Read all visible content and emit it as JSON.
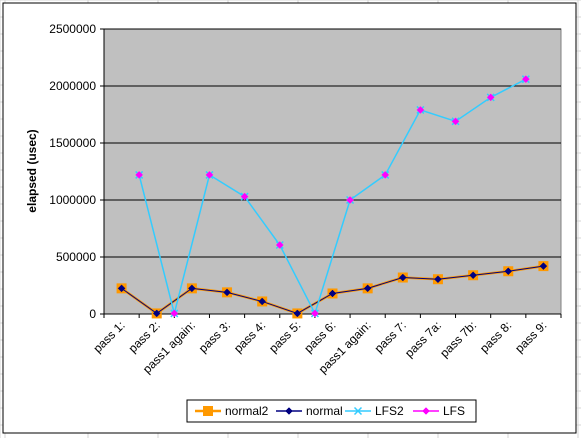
{
  "chart_data": {
    "type": "line",
    "title": "",
    "xlabel": "",
    "ylabel": "elapsed (usec)",
    "ylim": [
      0,
      2500000
    ],
    "yticks": [
      "0",
      "500000",
      "1000000",
      "1500000",
      "2000000",
      "2500000"
    ],
    "categories": [
      "pass 1:",
      "pass 2:",
      "pass1 again:",
      "pass 3:",
      "pass 4:",
      "pass 5:",
      "pass 6:",
      "pass1 again:",
      "pass 7:",
      "pass 7a:",
      "pass 7b:",
      "pass 8:",
      "pass 9:"
    ],
    "grid": "horizontal major",
    "legend": "bottom",
    "plot_background": "#c0c0c0",
    "series": [
      {
        "name": "normal2",
        "color": "#ff9900",
        "marker": "square",
        "offset": "on-tick",
        "values": [
          225000,
          5000,
          225000,
          190000,
          110000,
          5000,
          180000,
          225000,
          320000,
          305000,
          340000,
          375000,
          420000
        ]
      },
      {
        "name": "normal",
        "color": "#000080",
        "marker": "diamond",
        "offset": "on-tick",
        "values": [
          225000,
          5000,
          225000,
          190000,
          110000,
          5000,
          180000,
          225000,
          320000,
          305000,
          340000,
          375000,
          420000
        ]
      },
      {
        "name": "LFS2",
        "color": "#33ccff",
        "marker": "x",
        "offset": "between",
        "values": [
          1220000,
          5000,
          1220000,
          1030000,
          605000,
          5000,
          1000000,
          1220000,
          1790000,
          1690000,
          1900000,
          2060000,
          null
        ]
      },
      {
        "name": "LFS",
        "color": "#ff00ff",
        "marker": "diamond",
        "offset": "between",
        "values": [
          1220000,
          5000,
          1220000,
          1030000,
          605000,
          5000,
          1000000,
          1220000,
          1790000,
          1690000,
          1900000,
          2060000,
          null
        ]
      }
    ]
  }
}
